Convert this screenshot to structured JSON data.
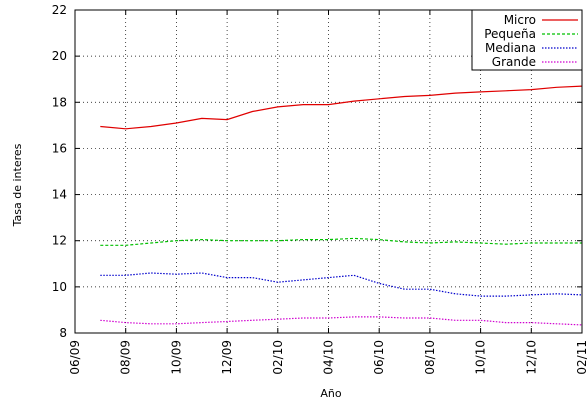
{
  "chart_data": {
    "type": "line",
    "title": "",
    "xlabel": "Año",
    "ylabel": "Tasa de interes",
    "x_tick_labels": [
      "06/09",
      "08/09",
      "10/09",
      "12/09",
      "02/10",
      "04/10",
      "06/10",
      "08/10",
      "10/10",
      "12/10",
      "02/11"
    ],
    "x_months": [
      "06/09",
      "07/09",
      "08/09",
      "09/09",
      "10/09",
      "11/09",
      "12/09",
      "01/10",
      "02/10",
      "03/10",
      "04/10",
      "05/10",
      "06/10",
      "07/10",
      "08/10",
      "09/10",
      "10/10",
      "11/10",
      "12/10",
      "01/11",
      "02/11"
    ],
    "ylim": [
      8,
      22
    ],
    "y_ticks": [
      8,
      10,
      12,
      14,
      16,
      18,
      20,
      22
    ],
    "grid": true,
    "legend_position": "top-right",
    "series": [
      {
        "name": "Micro",
        "color": "#e00000",
        "style": "solid",
        "x": [
          "07/09",
          "08/09",
          "09/09",
          "10/09",
          "11/09",
          "12/09",
          "01/10",
          "02/10",
          "03/10",
          "04/10",
          "05/10",
          "06/10",
          "07/10",
          "08/10",
          "09/10",
          "10/10",
          "11/10",
          "12/10",
          "01/11",
          "02/11"
        ],
        "values": [
          16.95,
          16.85,
          16.95,
          17.1,
          17.3,
          17.25,
          17.6,
          17.8,
          17.9,
          17.9,
          18.05,
          18.15,
          18.25,
          18.3,
          18.4,
          18.45,
          18.5,
          18.55,
          18.65,
          18.7
        ]
      },
      {
        "name": "Pequeña",
        "color": "#00c000",
        "style": "dashed",
        "x": [
          "07/09",
          "08/09",
          "09/09",
          "10/09",
          "11/09",
          "12/09",
          "01/10",
          "02/10",
          "03/10",
          "04/10",
          "05/10",
          "06/10",
          "07/10",
          "08/10",
          "09/10",
          "10/10",
          "11/10",
          "12/10",
          "01/11",
          "02/11"
        ],
        "values": [
          11.8,
          11.8,
          11.9,
          12.0,
          12.05,
          12.0,
          12.0,
          12.0,
          12.05,
          12.05,
          12.1,
          12.05,
          11.95,
          11.9,
          11.95,
          11.9,
          11.85,
          11.9,
          11.9,
          11.9
        ]
      },
      {
        "name": "Mediana",
        "color": "#0000cc",
        "style": "dotted",
        "x": [
          "07/09",
          "08/09",
          "09/09",
          "10/09",
          "11/09",
          "12/09",
          "01/10",
          "02/10",
          "03/10",
          "04/10",
          "05/10",
          "06/10",
          "07/10",
          "08/10",
          "09/10",
          "10/10",
          "11/10",
          "12/10",
          "01/11",
          "02/11"
        ],
        "values": [
          10.5,
          10.5,
          10.6,
          10.55,
          10.6,
          10.4,
          10.4,
          10.2,
          10.3,
          10.4,
          10.5,
          10.15,
          9.9,
          9.9,
          9.7,
          9.6,
          9.6,
          9.65,
          9.7,
          9.65
        ]
      },
      {
        "name": "Grande",
        "color": "#d000d0",
        "style": "dotted",
        "x": [
          "07/09",
          "08/09",
          "09/09",
          "10/09",
          "11/09",
          "12/09",
          "01/10",
          "02/10",
          "03/10",
          "04/10",
          "05/10",
          "06/10",
          "07/10",
          "08/10",
          "09/10",
          "10/10",
          "11/10",
          "12/10",
          "01/11",
          "02/11"
        ],
        "values": [
          8.55,
          8.45,
          8.4,
          8.4,
          8.45,
          8.5,
          8.55,
          8.6,
          8.65,
          8.65,
          8.7,
          8.7,
          8.65,
          8.65,
          8.55,
          8.55,
          8.45,
          8.45,
          8.4,
          8.35
        ]
      }
    ]
  }
}
